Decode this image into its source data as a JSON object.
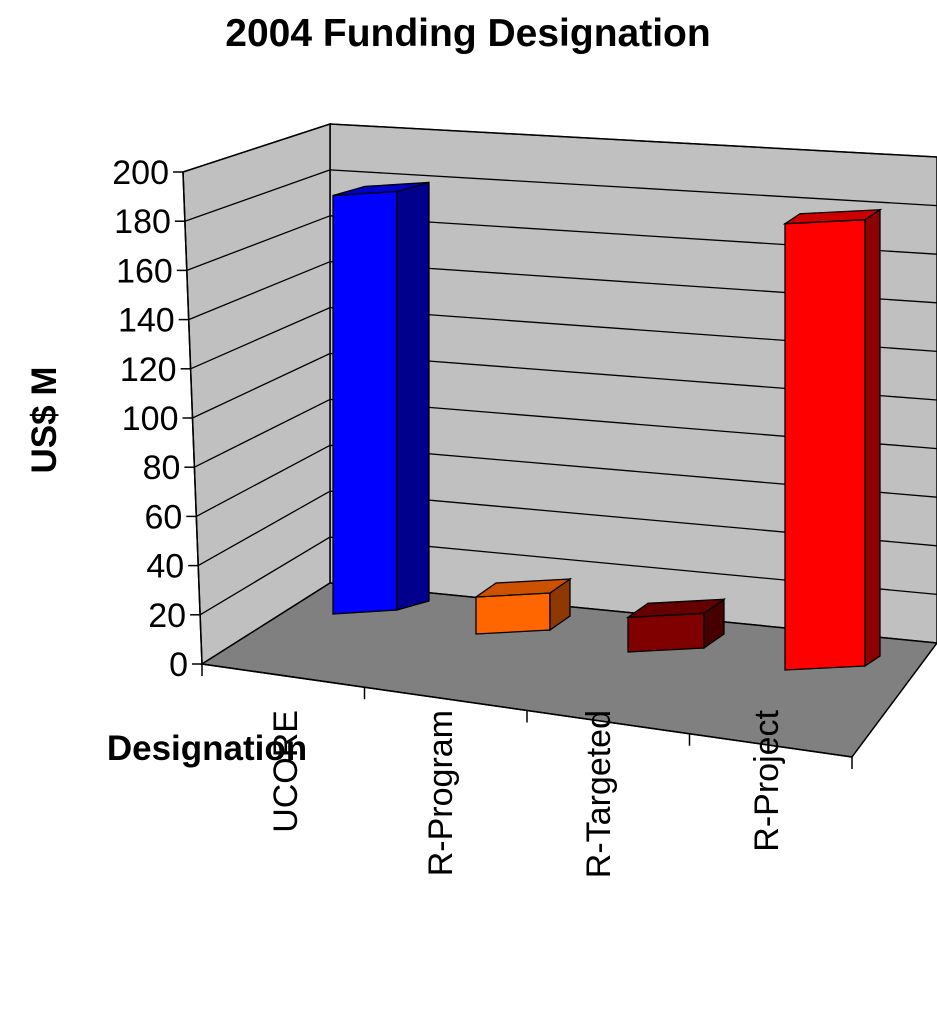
{
  "chart_data": {
    "type": "bar",
    "title": "2004 Funding Designation",
    "xlabel": "Designation",
    "ylabel": "US$ M",
    "categories": [
      "UCORE",
      "R-Program",
      "R-Targeted",
      "R-Project"
    ],
    "values": [
      181,
      16,
      15,
      193
    ],
    "ylim": [
      0,
      200
    ],
    "yticks": [
      "0",
      "20",
      "40",
      "60",
      "80",
      "100",
      "120",
      "140",
      "160",
      "180",
      "200"
    ],
    "grid": true,
    "style": "3d-column",
    "colors": {
      "UCORE": "#0000ff",
      "R-Program": "#ff6600",
      "R-Targeted": "#800000",
      "R-Project": "#ff0000",
      "wall": "#c0c0c0",
      "floor": "#808080"
    }
  }
}
